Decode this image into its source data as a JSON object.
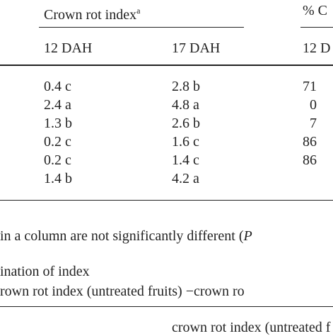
{
  "table": {
    "group_headers": [
      "Crown rot index",
      "% C"
    ],
    "group_header_note": "a",
    "columns": [
      "12 DAH",
      "17 DAH",
      "12 D"
    ],
    "rows": [
      [
        "0.4 c",
        "2.8 b",
        "71"
      ],
      [
        "2.4 a",
        "4.8 a",
        "0"
      ],
      [
        "1.3 b",
        "2.6 b",
        "7"
      ],
      [
        "0.2 c",
        "1.6 c",
        "86"
      ],
      [
        "0.2 c",
        "1.4 c",
        "86"
      ],
      [
        "1.4 b",
        "4.2 a"
      ]
    ]
  },
  "footnotes": {
    "significance": "in a column are not significantly different (",
    "significance_symbol": "P",
    "index_line": "ination of index",
    "numerator": "rown rot index (untreated fruits) −crown ro",
    "denominator": "crown rot index (untreated f"
  }
}
